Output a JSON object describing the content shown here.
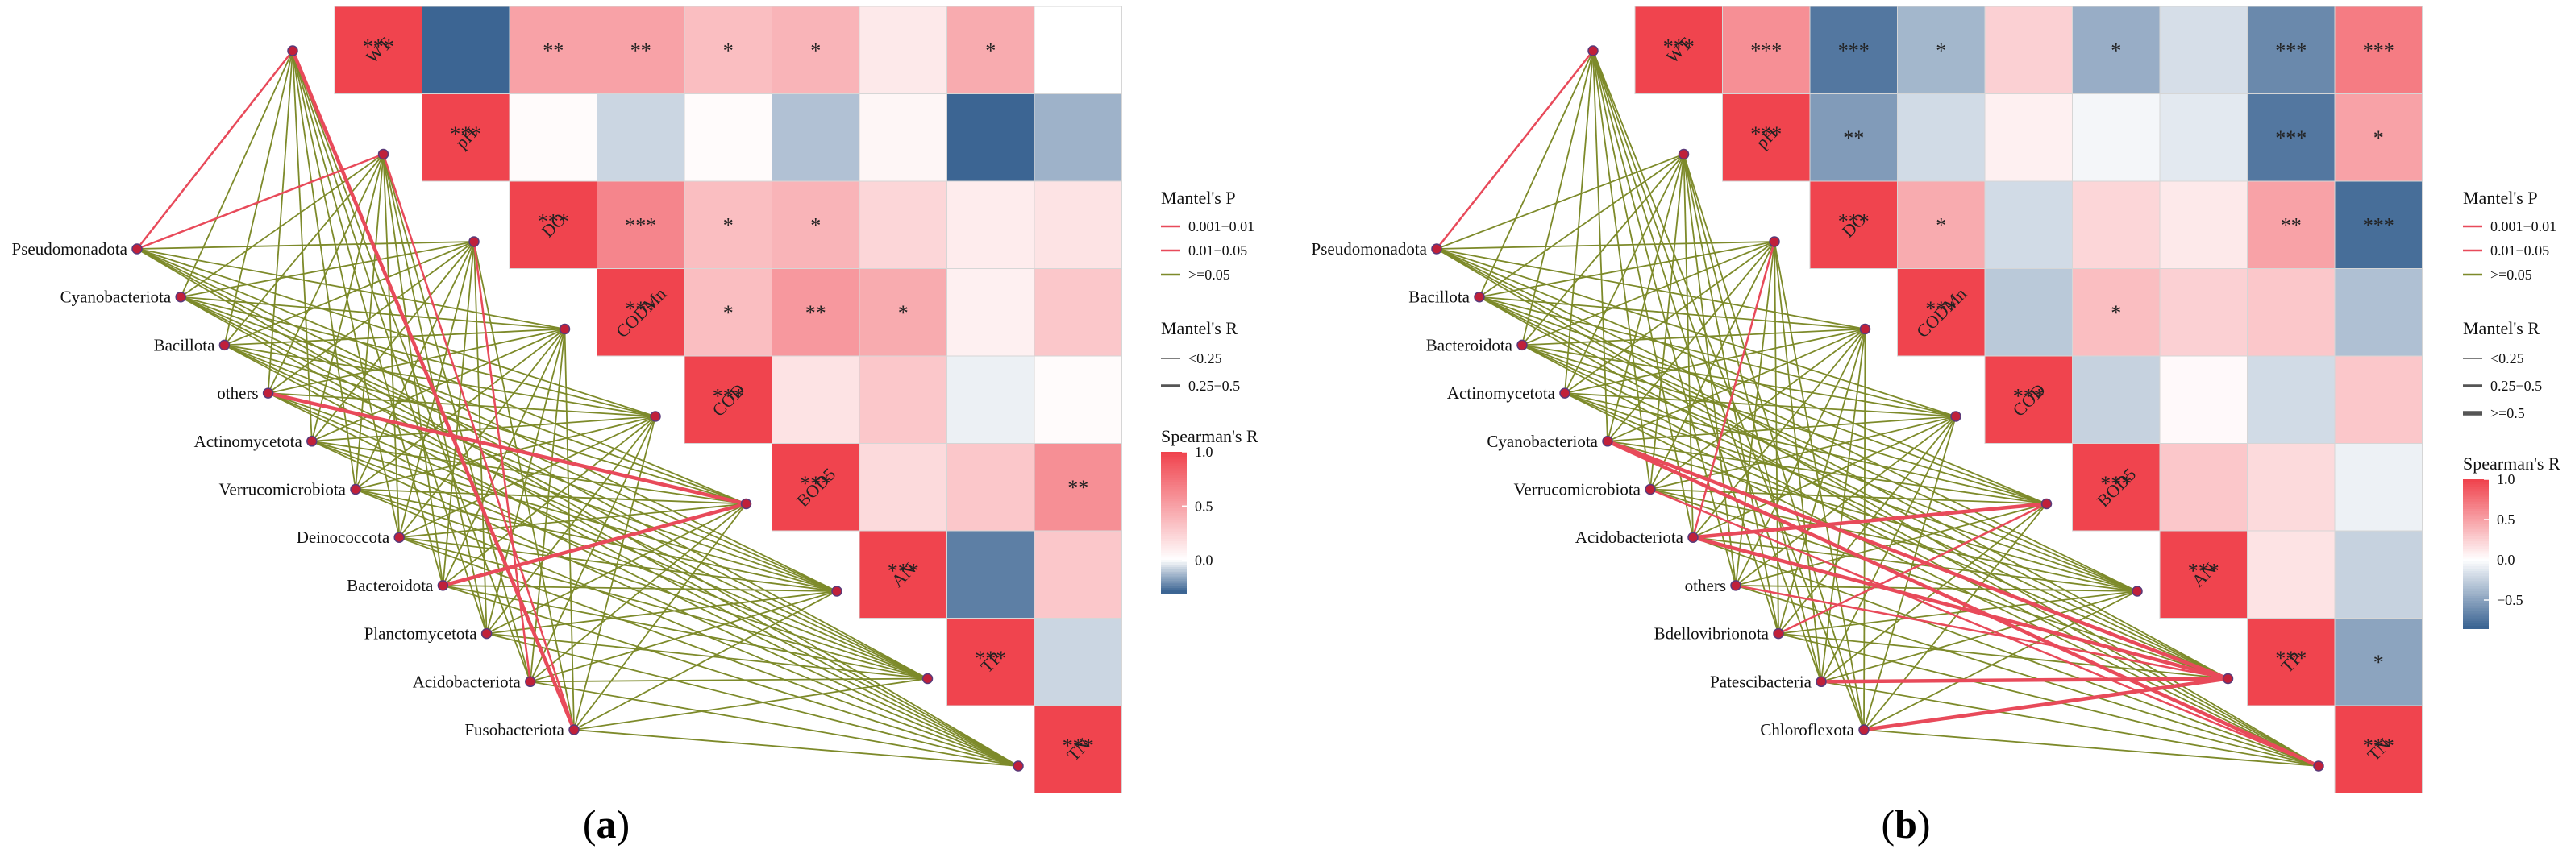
{
  "chart_data": [
    {
      "type": "heatmap",
      "panel_label": "(a)",
      "panel_open": "(",
      "panel_letter": "a",
      "panel_close": ")",
      "variables": [
        "WT",
        "pH",
        "DO",
        "CODMn",
        "COD",
        "BOD5",
        "AN",
        "TP",
        "TN"
      ],
      "matrix": [
        [
          1,
          -0.3,
          0.5,
          0.5,
          0.35,
          0.4,
          0.12,
          0.45,
          0
        ],
        [
          null,
          1,
          0.02,
          -0.08,
          0.02,
          -0.12,
          0.05,
          -0.4,
          -0.15
        ],
        [
          null,
          null,
          1,
          0.65,
          0.35,
          0.4,
          0.22,
          0.1,
          0.15
        ],
        [
          null,
          null,
          null,
          1,
          0.35,
          0.55,
          0.45,
          0.08,
          0.3
        ],
        [
          null,
          null,
          null,
          null,
          1,
          0.15,
          0.3,
          -0.03,
          0.02
        ],
        [
          null,
          null,
          null,
          null,
          null,
          1,
          0.2,
          0.3,
          0.6
        ],
        [
          null,
          null,
          null,
          null,
          null,
          null,
          1,
          -0.25,
          0.3
        ],
        [
          null,
          null,
          null,
          null,
          null,
          null,
          null,
          1,
          -0.08
        ],
        [
          null,
          null,
          null,
          null,
          null,
          null,
          null,
          null,
          1
        ]
      ],
      "stars": [
        [
          "***",
          "",
          "**",
          "**",
          "*",
          "*",
          "",
          "*",
          ""
        ],
        [
          null,
          "***",
          "",
          "",
          "",
          "",
          "",
          "",
          ""
        ],
        [
          null,
          null,
          "***",
          "***",
          "*",
          "*",
          "",
          "",
          ""
        ],
        [
          null,
          null,
          null,
          "***",
          "*",
          "**",
          "*",
          "",
          ""
        ],
        [
          null,
          null,
          null,
          null,
          "***",
          "",
          "",
          "",
          ""
        ],
        [
          null,
          null,
          null,
          null,
          null,
          "***",
          "",
          "",
          "**"
        ],
        [
          null,
          null,
          null,
          null,
          null,
          null,
          "***",
          "",
          ""
        ],
        [
          null,
          null,
          null,
          null,
          null,
          null,
          null,
          "***",
          ""
        ],
        [
          null,
          null,
          null,
          null,
          null,
          null,
          null,
          null,
          "***"
        ]
      ],
      "color_scale": {
        "min": -0.3,
        "max": 1.0,
        "ticks": [
          "1.0",
          "0.5",
          "0.0"
        ],
        "tick_values": [
          1.0,
          0.5,
          0.0
        ]
      },
      "taxa": [
        "Pseudomonadota",
        "Cyanobacteriota",
        "Bacillota",
        "others",
        "Actinomycetota",
        "Verrucomicrobiota",
        "Deinococcota",
        "Bacteroidota",
        "Planctomycetota",
        "Acidobacteriota",
        "Fusobacteriota"
      ],
      "highlight_links": [
        {
          "taxon": 0,
          "var": 0,
          "p": "0.01-0.05",
          "r": "<0.25"
        },
        {
          "taxon": 0,
          "var": 1,
          "p": "0.01-0.05",
          "r": "<0.25"
        },
        {
          "taxon": 3,
          "var": 5,
          "p": "0.01-0.05",
          "r": "0.25-0.5"
        },
        {
          "taxon": 7,
          "var": 5,
          "p": "0.01-0.05",
          "r": "0.25-0.5"
        },
        {
          "taxon": 10,
          "var": 0,
          "p": "0.01-0.05",
          "r": "0.25-0.5"
        },
        {
          "taxon": 10,
          "var": 1,
          "p": "0.01-0.05",
          "r": "<0.25"
        },
        {
          "taxon": 9,
          "var": 2,
          "p": "0.01-0.05",
          "r": "<0.25"
        }
      ],
      "legend": {
        "mantel_p_title": "Mantel's P",
        "mantel_p": [
          {
            "label": "0.001−0.01",
            "color": "#e84a5a"
          },
          {
            "label": "0.01−0.05",
            "color": "#e84a5a"
          },
          {
            "label": ">=0.05",
            "color": "#7d8a2a"
          }
        ],
        "mantel_r_title": "Mantel's R",
        "mantel_r": [
          "<0.25",
          "0.25−0.5"
        ],
        "spearman_title": "Spearman's R"
      }
    },
    {
      "type": "heatmap",
      "panel_label": "(b)",
      "panel_open": "(",
      "panel_letter": "b",
      "panel_close": ")",
      "variables": [
        "WT",
        "pH",
        "DO",
        "CODMn",
        "COD",
        "BOD5",
        "AN",
        "TP",
        "TN"
      ],
      "matrix": [
        [
          1,
          0.6,
          -0.75,
          -0.4,
          0.25,
          -0.45,
          -0.18,
          -0.65,
          0.7
        ],
        [
          null,
          1,
          -0.55,
          -0.2,
          0.08,
          -0.05,
          -0.12,
          -0.75,
          0.5
        ],
        [
          null,
          null,
          1,
          0.45,
          -0.2,
          0.22,
          0.12,
          0.5,
          -0.8
        ],
        [
          null,
          null,
          null,
          1,
          -0.3,
          0.35,
          0.25,
          0.3,
          -0.35
        ],
        [
          null,
          null,
          null,
          null,
          1,
          -0.25,
          0.03,
          -0.2,
          0.3
        ],
        [
          null,
          null,
          null,
          null,
          null,
          1,
          0.3,
          0.2,
          -0.08
        ],
        [
          null,
          null,
          null,
          null,
          null,
          null,
          1,
          0.15,
          -0.25
        ],
        [
          null,
          null,
          null,
          null,
          null,
          null,
          null,
          1,
          -0.5
        ],
        [
          null,
          null,
          null,
          null,
          null,
          null,
          null,
          null,
          1
        ]
      ],
      "stars": [
        [
          "***",
          "***",
          "***",
          "*",
          "",
          "*",
          "",
          "***",
          "***"
        ],
        [
          null,
          "***",
          "**",
          "",
          "",
          "",
          "",
          "***",
          "*"
        ],
        [
          null,
          null,
          "***",
          "*",
          "",
          "",
          "",
          "**",
          "***"
        ],
        [
          null,
          null,
          null,
          "***",
          "",
          "*",
          "",
          "",
          ""
        ],
        [
          null,
          null,
          null,
          null,
          "***",
          "",
          "",
          "",
          ""
        ],
        [
          null,
          null,
          null,
          null,
          null,
          "***",
          "",
          "",
          ""
        ],
        [
          null,
          null,
          null,
          null,
          null,
          null,
          "***",
          "",
          ""
        ],
        [
          null,
          null,
          null,
          null,
          null,
          null,
          null,
          "***",
          "*"
        ],
        [
          null,
          null,
          null,
          null,
          null,
          null,
          null,
          null,
          "***"
        ]
      ],
      "color_scale": {
        "min": -0.85,
        "max": 1.0,
        "ticks": [
          "1.0",
          "0.5",
          "0.0",
          "−0.5"
        ],
        "tick_values": [
          1.0,
          0.5,
          0.0,
          -0.5
        ]
      },
      "taxa": [
        "Pseudomonadota",
        "Bacillota",
        "Bacteroidota",
        "Actinomycetota",
        "Cyanobacteriota",
        "Verrucomicrobiota",
        "Acidobacteriota",
        "others",
        "Bdellovibrionota",
        "Patescibacteria",
        "Chloroflexota"
      ],
      "highlight_links": [
        {
          "taxon": 4,
          "var": 7,
          "p": "0.01-0.05",
          "r": "0.25-0.5"
        },
        {
          "taxon": 4,
          "var": 8,
          "p": "0.01-0.05",
          "r": "0.25-0.5"
        },
        {
          "taxon": 6,
          "var": 5,
          "p": "0.01-0.05",
          "r": "0.25-0.5"
        },
        {
          "taxon": 6,
          "var": 2,
          "p": "0.01-0.05",
          "r": "<0.25"
        },
        {
          "taxon": 6,
          "var": 7,
          "p": "0.01-0.05",
          "r": "0.25-0.5"
        },
        {
          "taxon": 7,
          "var": 7,
          "p": "0.01-0.05",
          "r": "<0.25"
        },
        {
          "taxon": 8,
          "var": 5,
          "p": "0.01-0.05",
          "r": "<0.25"
        },
        {
          "taxon": 9,
          "var": 7,
          "p": "0.01-0.05",
          "r": "0.25-0.5"
        },
        {
          "taxon": 10,
          "var": 7,
          "p": "0.01-0.05",
          "r": "0.25-0.5"
        },
        {
          "taxon": 0,
          "var": 0,
          "p": "0.01-0.05",
          "r": "<0.25"
        },
        {
          "taxon": 5,
          "var": 8,
          "p": "0.01-0.05",
          "r": "<0.25"
        }
      ],
      "legend": {
        "mantel_p_title": "Mantel's P",
        "mantel_p": [
          {
            "label": "0.001−0.01",
            "color": "#e84a5a"
          },
          {
            "label": "0.01−0.05",
            "color": "#e84a5a"
          },
          {
            "label": ">=0.05",
            "color": "#7d8a2a"
          }
        ],
        "mantel_r_title": "Mantel's R",
        "mantel_r": [
          "<0.25",
          "0.25−0.5",
          ">=0.5"
        ],
        "spearman_title": "Spearman's R"
      }
    }
  ],
  "colors": {
    "positive": "#f0444e",
    "negative": "#3c6593",
    "neutral": "#ffffff",
    "link": "#7d8a2a",
    "link_sig": "#e84a5a",
    "node": "#c0203a"
  }
}
